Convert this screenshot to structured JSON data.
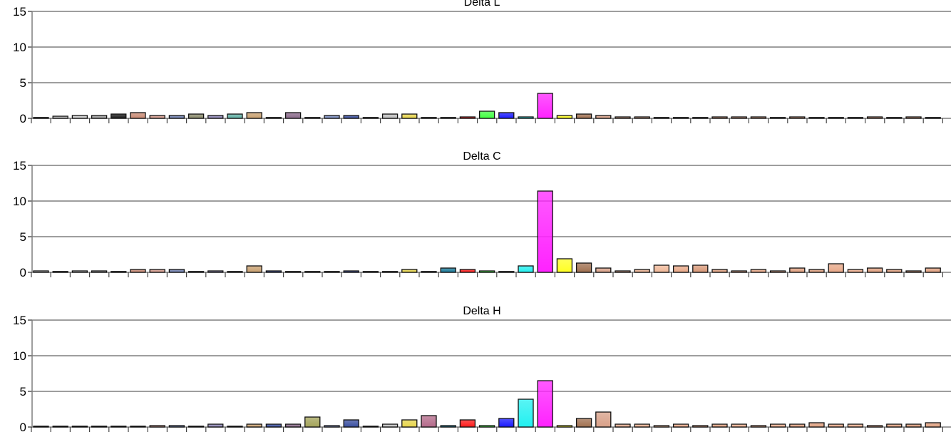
{
  "colors": [
    "#cfcfcf",
    "#b4b4b4",
    "#cccccc",
    "#9d9d9d",
    "#1a1a1a",
    "#c98a74",
    "#d49a8c",
    "#6f7fb0",
    "#8a8a6a",
    "#8c84b4",
    "#5fb0a4",
    "#c9a070",
    "#3a4fa0",
    "#8a6a8a",
    "#a4a45a",
    "#7a8cc0",
    "#3a4fa0",
    "#4f9a5a",
    "#c0c0c0",
    "#e6d44a",
    "#b46a8a",
    "#1a7a9a",
    "#ff1a1a",
    "#42ff42",
    "#1a1aff",
    "#22f0f0",
    "#ff22ff",
    "#ffff22",
    "#a07050",
    "#d8a088",
    "#e0a88c",
    "#e8b090",
    "#f0b898",
    "#e8a888",
    "#d89878",
    "#e0a080",
    "#f0b090",
    "#e8a888",
    "#f0b090",
    "#e0a080",
    "#e0a080",
    "#e8a888",
    "#f0b090",
    "#e0a080",
    "#e0a080",
    "#d89878",
    "#e0a080"
  ],
  "chart_data": [
    {
      "type": "bar",
      "title": "Delta L",
      "ylim": [
        0,
        15
      ],
      "yticks": [
        "0",
        "5",
        "10",
        "15"
      ],
      "grid": true,
      "values": [
        0.1,
        0.3,
        0.4,
        0.4,
        0.6,
        0.8,
        0.4,
        0.4,
        0.6,
        0.4,
        0.6,
        0.8,
        0.0,
        0.8,
        0.0,
        0.4,
        0.4,
        0.0,
        0.6,
        0.6,
        0.0,
        0.0,
        0.2,
        1.0,
        0.8,
        0.2,
        3.5,
        0.4,
        0.6,
        0.4,
        0.2,
        0.2,
        0.0,
        0.0,
        0.0,
        0.2,
        0.2,
        0.2,
        0.0,
        0.2,
        0.0,
        0.0,
        0.0,
        0.2,
        0.0,
        0.2,
        0.0
      ]
    },
    {
      "type": "bar",
      "title": "Delta C",
      "ylim": [
        0,
        15
      ],
      "yticks": [
        "0",
        "5",
        "10",
        "15"
      ],
      "grid": true,
      "values": [
        0.2,
        0.0,
        0.2,
        0.2,
        0.0,
        0.4,
        0.4,
        0.4,
        0.0,
        0.2,
        0.0,
        0.9,
        0.2,
        0.0,
        0.0,
        0.0,
        0.2,
        0.0,
        0.0,
        0.4,
        0.0,
        0.6,
        0.4,
        0.2,
        0.0,
        0.9,
        11.4,
        1.9,
        1.3,
        0.6,
        0.2,
        0.4,
        1.0,
        0.9,
        1.0,
        0.4,
        0.2,
        0.4,
        0.2,
        0.6,
        0.4,
        1.2,
        0.4,
        0.6,
        0.4,
        0.2,
        0.6
      ]
    },
    {
      "type": "bar",
      "title": "Delta H",
      "ylim": [
        0,
        15
      ],
      "yticks": [
        "0",
        "5",
        "10",
        "15"
      ],
      "grid": true,
      "values": [
        0.0,
        0.0,
        0.0,
        0.0,
        0.0,
        0.0,
        0.2,
        0.2,
        0.0,
        0.4,
        0.0,
        0.4,
        0.4,
        0.4,
        1.4,
        0.2,
        1.0,
        0.0,
        0.4,
        1.0,
        1.6,
        0.2,
        1.0,
        0.2,
        1.2,
        3.9,
        6.5,
        0.2,
        1.2,
        2.1,
        0.4,
        0.4,
        0.2,
        0.4,
        0.2,
        0.4,
        0.4,
        0.2,
        0.4,
        0.4,
        0.6,
        0.4,
        0.4,
        0.2,
        0.4,
        0.4,
        0.6
      ]
    }
  ]
}
